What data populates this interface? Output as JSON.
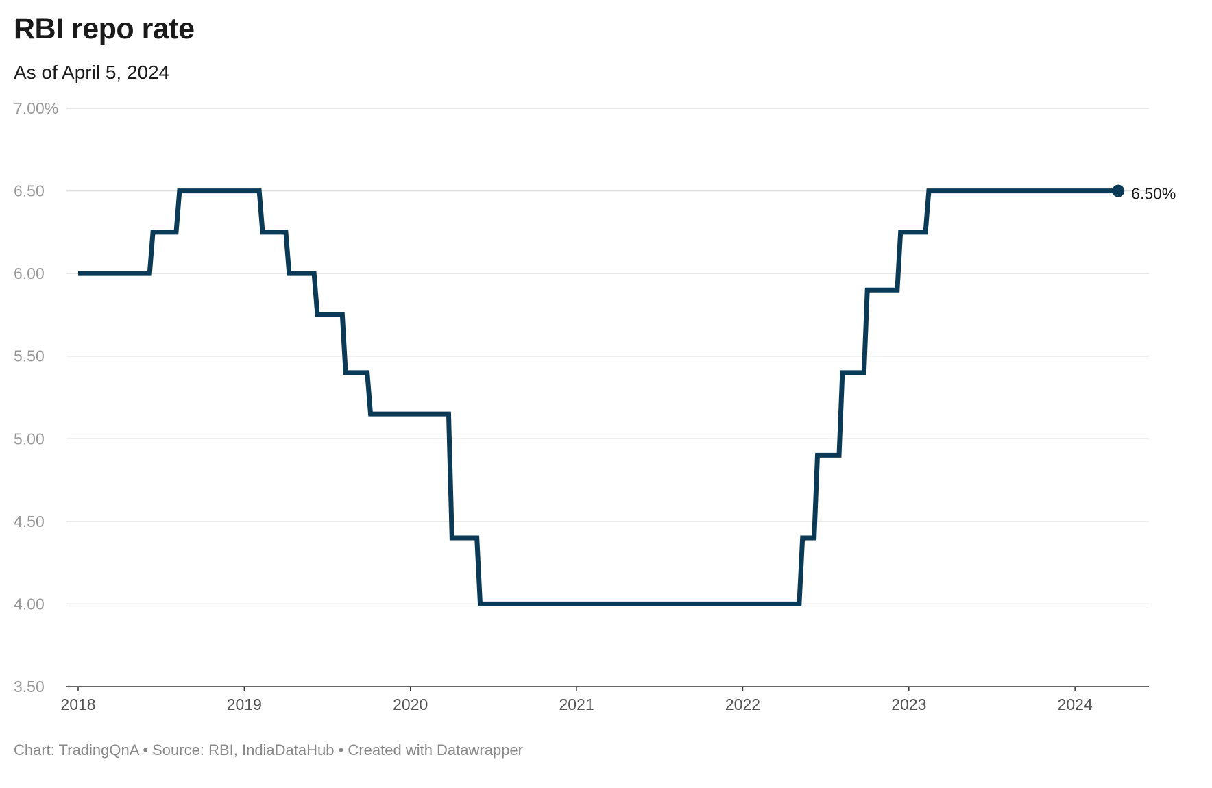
{
  "chart_data": {
    "type": "line",
    "title": "RBI repo rate",
    "subtitle": "As of April 5, 2024",
    "footer": "Chart: TradingQnA • Source: RBI, IndiaDataHub • Created with Datawrapper",
    "xlabel": "",
    "ylabel": "",
    "xlim": [
      2018,
      2024.35
    ],
    "ylim": [
      3.5,
      7.0
    ],
    "x_ticks": [
      2018,
      2019,
      2020,
      2021,
      2022,
      2023,
      2024
    ],
    "x_tick_labels": [
      "2018",
      "2019",
      "2020",
      "2021",
      "2022",
      "2023",
      "2024"
    ],
    "y_ticks": [
      3.5,
      4.0,
      4.5,
      5.0,
      5.5,
      6.0,
      6.5,
      7.0
    ],
    "y_tick_labels": [
      "3.50",
      "4.00",
      "4.50",
      "5.00",
      "5.50",
      "6.00",
      "6.50",
      "7.00%"
    ],
    "grid": true,
    "step": true,
    "series": [
      {
        "color": "#0b3a57",
        "x": [
          2018.0,
          2018.43,
          2018.59,
          2019.09,
          2019.25,
          2019.42,
          2019.59,
          2019.74,
          2020.23,
          2020.4,
          2022.34,
          2022.43,
          2022.58,
          2022.73,
          2022.93,
          2023.1,
          2024.26
        ],
        "y": [
          6.0,
          6.25,
          6.5,
          6.25,
          6.0,
          5.75,
          5.4,
          5.15,
          4.4,
          4.0,
          4.4,
          4.9,
          5.4,
          5.9,
          6.25,
          6.5,
          6.5
        ]
      }
    ],
    "end_label": "6.50%"
  }
}
